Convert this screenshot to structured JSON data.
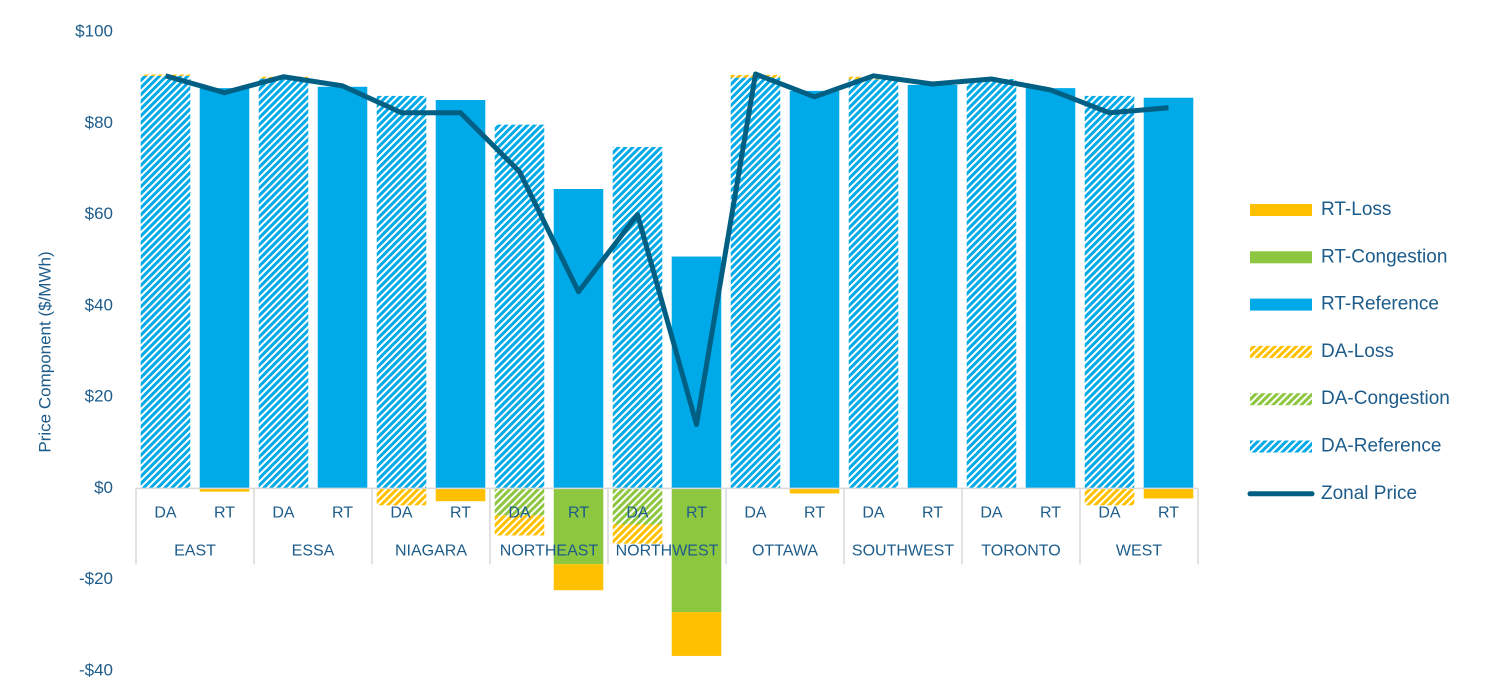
{
  "chart_data": {
    "type": "bar",
    "stacked": true,
    "y_label": "Price Component ($/MWh)",
    "categories": [
      "DA",
      "RT",
      "DA",
      "RT",
      "DA",
      "RT",
      "DA",
      "RT",
      "DA",
      "RT",
      "DA",
      "RT",
      "DA",
      "RT",
      "DA",
      "RT",
      "DA",
      "RT"
    ],
    "category_groups": [
      "EAST",
      "ESSA",
      "NIAGARA",
      "NORTHEAST",
      "NORTHWEST",
      "OTTAWA",
      "SOUTHWEST",
      "TORONTO",
      "WEST"
    ],
    "ylim": [
      -40,
      100
    ],
    "yticks": [
      {
        "value": -40,
        "label": "-$40"
      },
      {
        "value": -20,
        "label": "-$20"
      },
      {
        "value": 0,
        "label": "$0"
      },
      {
        "value": 20,
        "label": "$20"
      },
      {
        "value": 40,
        "label": "$40"
      },
      {
        "value": 60,
        "label": "$60"
      },
      {
        "value": 80,
        "label": "$80"
      },
      {
        "value": 100,
        "label": "$100"
      }
    ],
    "grid": false,
    "legend": "right",
    "series": [
      {
        "name": "RT-Loss",
        "color": "#ffc000",
        "hatched": false,
        "values": [
          null,
          -0.7,
          null,
          0,
          null,
          -2.8,
          null,
          -5.7,
          null,
          -9.6,
          null,
          -1.1,
          null,
          0,
          null,
          0,
          null,
          -2.2
        ]
      },
      {
        "name": "RT-Congestion",
        "color": "#8dc63f",
        "hatched": false,
        "values": [
          null,
          0,
          null,
          0,
          null,
          0,
          null,
          -16.6,
          null,
          -27.1,
          null,
          0,
          null,
          0,
          null,
          0,
          null,
          0
        ]
      },
      {
        "name": "RT-Reference",
        "color": "#00a9e8",
        "hatched": false,
        "values": [
          null,
          87.7,
          null,
          88,
          null,
          85.1,
          null,
          65.6,
          null,
          50.8,
          null,
          87.1,
          null,
          88.4,
          null,
          87.7,
          null,
          85.6
        ]
      },
      {
        "name": "DA-Loss",
        "color": "#ffc000",
        "hatched": true,
        "values": [
          0.3,
          null,
          0.4,
          null,
          -3.7,
          null,
          -4.4,
          null,
          -4.2,
          null,
          0.6,
          null,
          0.6,
          null,
          0,
          null,
          -3.7,
          null
        ]
      },
      {
        "name": "DA-Congestion",
        "color": "#8dc63f",
        "hatched": true,
        "values": [
          0,
          null,
          0,
          null,
          0,
          null,
          -5.9,
          null,
          -7.9,
          null,
          0,
          null,
          0,
          null,
          0,
          null,
          0,
          null
        ]
      },
      {
        "name": "DA-Reference",
        "color": "#00a9e8",
        "hatched": true,
        "values": [
          90.4,
          null,
          89.8,
          null,
          86,
          null,
          79.7,
          null,
          74.8,
          null,
          90,
          null,
          89.6,
          null,
          89.7,
          null,
          86,
          null
        ]
      },
      {
        "name": "Zonal Price",
        "color": "#005f83",
        "type": "line",
        "values": [
          90.4,
          86.7,
          90.2,
          88.2,
          82.3,
          82.3,
          69.4,
          43.1,
          60,
          14,
          90.8,
          85.8,
          90.4,
          88.6,
          89.7,
          87.3,
          82.3,
          83.4
        ]
      }
    ]
  }
}
